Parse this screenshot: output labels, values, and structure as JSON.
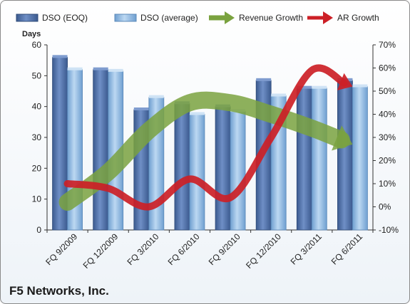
{
  "chart_data": {
    "type": "bar",
    "title": "",
    "ylabel": "Days",
    "ylim": [
      0,
      60
    ],
    "y_ticks": [
      "0",
      "10",
      "20",
      "30",
      "40",
      "50",
      "60"
    ],
    "y2lim": [
      -0.1,
      0.7
    ],
    "y2_ticks": [
      "-10%",
      "0%",
      "10%",
      "20%",
      "30%",
      "40%",
      "50%",
      "60%",
      "70%"
    ],
    "categories": [
      "FQ 9/2009",
      "FQ 12/2009",
      "FQ 3/2010",
      "FQ 6/2010",
      "FQ 9/2010",
      "FQ 12/2010",
      "FQ 3/2011",
      "FQ 6/2011"
    ],
    "series": [
      {
        "name": "DSO (EOQ)",
        "kind": "bar",
        "axis": "left",
        "color": "#4f6fa8",
        "values": [
          56,
          52,
          39,
          41,
          40,
          48.5,
          46,
          48.5
        ]
      },
      {
        "name": "DSO (average)",
        "kind": "bar",
        "axis": "left",
        "color": "#8fb8e0",
        "values": [
          52,
          51.5,
          43,
          37.5,
          38.5,
          43.5,
          46,
          46.5
        ]
      },
      {
        "name": "Revenue Growth",
        "kind": "line",
        "axis": "right",
        "color": "#7aa23f",
        "values": [
          0.02,
          0.15,
          0.33,
          0.45,
          0.45,
          0.4,
          0.34,
          0.27
        ]
      },
      {
        "name": "AR Growth",
        "kind": "line",
        "axis": "right",
        "color": "#cc1f26",
        "values": [
          0.1,
          0.08,
          0.0,
          0.12,
          0.04,
          0.3,
          0.59,
          0.52
        ]
      }
    ],
    "legend_position": "top",
    "grid": false
  },
  "company": "F5 Networks, Inc."
}
